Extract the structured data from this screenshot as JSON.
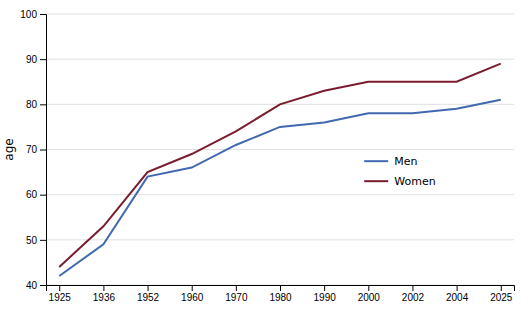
{
  "chart_data": {
    "type": "line",
    "categories": [
      "1925",
      "1936",
      "1952",
      "1960",
      "1970",
      "1980",
      "1990",
      "2000",
      "2002",
      "2004",
      "2025"
    ],
    "series": [
      {
        "name": "Men",
        "color": "#4169B0",
        "values": [
          42,
          49,
          64,
          66,
          71,
          75,
          76,
          78,
          78,
          79,
          81
        ]
      },
      {
        "name": "Women",
        "color": "#7B1C2E",
        "values": [
          44,
          53,
          65,
          69,
          74,
          80,
          83,
          85,
          85,
          85,
          89
        ]
      }
    ],
    "ylabel": "age",
    "ylim": [
      40,
      100
    ],
    "yticks": [
      40,
      50,
      60,
      70,
      80,
      90,
      100
    ],
    "grid": true,
    "legend": "right"
  }
}
